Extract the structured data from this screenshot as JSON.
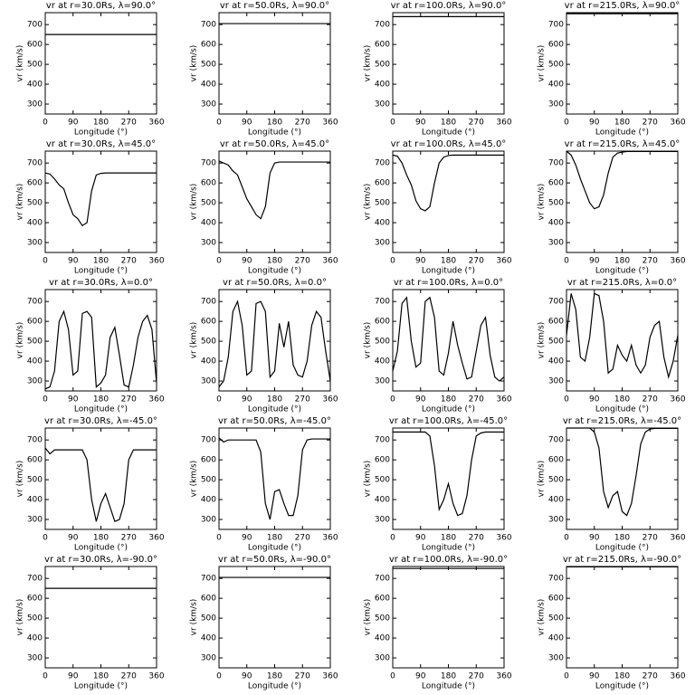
{
  "chart_data": [
    {
      "type": "line",
      "title": "vr at r=30.0Rs, λ=90.0°",
      "x_label": "Longitude (°)",
      "y_label": "vr (km/s)",
      "xlim": [
        0,
        360
      ],
      "ylim": [
        250,
        760
      ],
      "xticks": [
        0,
        90,
        180,
        270,
        360
      ],
      "yticks": [
        300,
        400,
        500,
        600,
        700
      ],
      "color": "#000000",
      "x": [
        0,
        360
      ],
      "values": [
        650,
        650
      ]
    },
    {
      "type": "line",
      "title": "vr at r=50.0Rs, λ=90.0°",
      "x_label": "Longitude (°)",
      "y_label": "vr (km/s)",
      "xlim": [
        0,
        360
      ],
      "ylim": [
        250,
        760
      ],
      "xticks": [
        0,
        90,
        180,
        270,
        360
      ],
      "yticks": [
        300,
        400,
        500,
        600,
        700
      ],
      "color": "#000000",
      "x": [
        0,
        360
      ],
      "values": [
        705,
        705
      ]
    },
    {
      "type": "line",
      "title": "vr at r=100.0Rs, λ=90.0°",
      "x_label": "Longitude (°)",
      "y_label": "vr (km/s)",
      "xlim": [
        0,
        360
      ],
      "ylim": [
        250,
        760
      ],
      "xticks": [
        0,
        90,
        180,
        270,
        360
      ],
      "yticks": [
        300,
        400,
        500,
        600,
        700
      ],
      "color": "#000000",
      "x": [
        0,
        360
      ],
      "values": [
        740,
        740
      ]
    },
    {
      "type": "line",
      "title": "vr at r=215.0Rs, λ=90.0°",
      "x_label": "Longitude (°)",
      "y_label": "vr (km/s)",
      "xlim": [
        0,
        360
      ],
      "ylim": [
        250,
        760
      ],
      "xticks": [
        0,
        90,
        180,
        270,
        360
      ],
      "yticks": [
        300,
        400,
        500,
        600,
        700
      ],
      "color": "#000000",
      "x": [
        0,
        360
      ],
      "values": [
        755,
        755
      ]
    },
    {
      "type": "line",
      "title": "vr at r=30.0Rs, λ=45.0°",
      "x_label": "Longitude (°)",
      "y_label": "vr (km/s)",
      "xlim": [
        0,
        360
      ],
      "ylim": [
        250,
        760
      ],
      "xticks": [
        0,
        90,
        180,
        270,
        360
      ],
      "yticks": [
        300,
        400,
        500,
        600,
        700
      ],
      "color": "#000000",
      "x": [
        0,
        15,
        30,
        45,
        60,
        75,
        90,
        105,
        120,
        135,
        150,
        165,
        180,
        195,
        210,
        225,
        240,
        255,
        270,
        285,
        300,
        315,
        330,
        345,
        360
      ],
      "values": [
        650,
        645,
        620,
        590,
        570,
        500,
        440,
        420,
        385,
        400,
        560,
        640,
        648,
        650,
        650,
        650,
        650,
        650,
        650,
        650,
        650,
        650,
        650,
        650,
        650
      ]
    },
    {
      "type": "line",
      "title": "vr at r=50.0Rs, λ=45.0°",
      "x_label": "Longitude (°)",
      "y_label": "vr (km/s)",
      "xlim": [
        0,
        360
      ],
      "ylim": [
        250,
        760
      ],
      "xticks": [
        0,
        90,
        180,
        270,
        360
      ],
      "yticks": [
        300,
        400,
        500,
        600,
        700
      ],
      "color": "#000000",
      "x": [
        0,
        15,
        30,
        45,
        60,
        75,
        90,
        105,
        120,
        135,
        150,
        165,
        180,
        195,
        210,
        225,
        240,
        255,
        270,
        285,
        300,
        315,
        330,
        345,
        360
      ],
      "values": [
        710,
        700,
        690,
        660,
        640,
        580,
        520,
        480,
        440,
        420,
        480,
        650,
        700,
        705,
        705,
        705,
        705,
        705,
        705,
        705,
        705,
        705,
        705,
        705,
        705
      ]
    },
    {
      "type": "line",
      "title": "vr at r=100.0Rs, λ=45.0°",
      "x_label": "Longitude (°)",
      "y_label": "vr (km/s)",
      "xlim": [
        0,
        360
      ],
      "ylim": [
        250,
        760
      ],
      "xticks": [
        0,
        90,
        180,
        270,
        360
      ],
      "yticks": [
        300,
        400,
        500,
        600,
        700
      ],
      "color": "#000000",
      "x": [
        0,
        15,
        30,
        45,
        60,
        75,
        90,
        105,
        120,
        135,
        150,
        165,
        180,
        195,
        210,
        225,
        240,
        255,
        270,
        285,
        300,
        315,
        330,
        345,
        360
      ],
      "values": [
        740,
        735,
        700,
        640,
        590,
        510,
        470,
        460,
        480,
        600,
        700,
        730,
        738,
        740,
        740,
        740,
        740,
        740,
        740,
        740,
        740,
        740,
        740,
        740,
        740
      ]
    },
    {
      "type": "line",
      "title": "vr at r=215.0Rs, λ=45.0°",
      "x_label": "Longitude (°)",
      "y_label": "vr (km/s)",
      "xlim": [
        0,
        360
      ],
      "ylim": [
        250,
        760
      ],
      "xticks": [
        0,
        90,
        180,
        270,
        360
      ],
      "yticks": [
        300,
        400,
        500,
        600,
        700
      ],
      "color": "#000000",
      "x": [
        0,
        15,
        30,
        45,
        60,
        75,
        90,
        105,
        120,
        135,
        150,
        165,
        180,
        195,
        210,
        225,
        240,
        255,
        270,
        285,
        300,
        315,
        330,
        345,
        360
      ],
      "values": [
        760,
        740,
        690,
        620,
        560,
        500,
        470,
        480,
        540,
        650,
        730,
        750,
        755,
        758,
        758,
        758,
        758,
        758,
        758,
        758,
        758,
        758,
        758,
        758,
        758
      ]
    },
    {
      "type": "line",
      "title": "vr at r=30.0Rs, λ=0.0°",
      "x_label": "Longitude (°)",
      "y_label": "vr (km/s)",
      "xlim": [
        0,
        360
      ],
      "ylim": [
        250,
        760
      ],
      "xticks": [
        0,
        90,
        180,
        270,
        360
      ],
      "yticks": [
        300,
        400,
        500,
        600,
        700
      ],
      "color": "#000000",
      "x": [
        0,
        15,
        30,
        45,
        60,
        75,
        90,
        105,
        120,
        135,
        150,
        165,
        180,
        195,
        210,
        225,
        240,
        255,
        270,
        285,
        300,
        315,
        330,
        345,
        360
      ],
      "values": [
        260,
        270,
        350,
        600,
        650,
        560,
        330,
        350,
        640,
        650,
        620,
        270,
        290,
        330,
        520,
        570,
        430,
        280,
        270,
        380,
        520,
        600,
        630,
        560,
        290
      ]
    },
    {
      "type": "line",
      "title": "vr at r=50.0Rs, λ=0.0°",
      "x_label": "Longitude (°)",
      "y_label": "vr (km/s)",
      "xlim": [
        0,
        360
      ],
      "ylim": [
        250,
        760
      ],
      "xticks": [
        0,
        90,
        180,
        270,
        360
      ],
      "yticks": [
        300,
        400,
        500,
        600,
        700
      ],
      "color": "#000000",
      "x": [
        0,
        15,
        30,
        45,
        60,
        75,
        90,
        105,
        120,
        135,
        150,
        165,
        180,
        195,
        210,
        225,
        240,
        255,
        270,
        285,
        300,
        315,
        330,
        345,
        360
      ],
      "values": [
        270,
        300,
        420,
        650,
        700,
        580,
        330,
        350,
        690,
        700,
        650,
        320,
        350,
        590,
        470,
        600,
        380,
        330,
        320,
        400,
        580,
        650,
        620,
        450,
        300
      ]
    },
    {
      "type": "line",
      "title": "vr at r=100.0Rs, λ=0.0°",
      "x_label": "Longitude (°)",
      "y_label": "vr (km/s)",
      "xlim": [
        0,
        360
      ],
      "ylim": [
        250,
        760
      ],
      "xticks": [
        0,
        90,
        180,
        270,
        360
      ],
      "yticks": [
        300,
        400,
        500,
        600,
        700
      ],
      "color": "#000000",
      "x": [
        0,
        15,
        30,
        45,
        60,
        75,
        90,
        105,
        120,
        135,
        150,
        165,
        180,
        195,
        210,
        225,
        240,
        255,
        270,
        285,
        300,
        315,
        330,
        345,
        360
      ],
      "values": [
        350,
        450,
        690,
        720,
        500,
        370,
        390,
        700,
        720,
        620,
        350,
        330,
        440,
        600,
        480,
        390,
        310,
        320,
        450,
        580,
        620,
        430,
        320,
        300,
        320
      ]
    },
    {
      "type": "line",
      "title": "vr at r=215.0Rs, λ=0.0°",
      "x_label": "Longitude (°)",
      "y_label": "vr (km/s)",
      "xlim": [
        0,
        360
      ],
      "ylim": [
        250,
        760
      ],
      "xticks": [
        0,
        90,
        180,
        270,
        360
      ],
      "yticks": [
        300,
        400,
        500,
        600,
        700
      ],
      "color": "#000000",
      "x": [
        0,
        15,
        30,
        45,
        60,
        75,
        90,
        105,
        120,
        135,
        150,
        165,
        180,
        195,
        210,
        225,
        240,
        255,
        270,
        285,
        300,
        315,
        330,
        345,
        360
      ],
      "values": [
        530,
        740,
        660,
        420,
        400,
        520,
        740,
        730,
        600,
        340,
        360,
        480,
        430,
        400,
        480,
        380,
        340,
        380,
        520,
        580,
        600,
        420,
        320,
        400,
        530
      ]
    },
    {
      "type": "line",
      "title": "vr at r=30.0Rs, λ=-45.0°",
      "x_label": "Longitude (°)",
      "y_label": "vr (km/s)",
      "xlim": [
        0,
        360
      ],
      "ylim": [
        250,
        760
      ],
      "xticks": [
        0,
        90,
        180,
        270,
        360
      ],
      "yticks": [
        300,
        400,
        500,
        600,
        700
      ],
      "color": "#000000",
      "x": [
        0,
        15,
        30,
        45,
        60,
        75,
        90,
        105,
        120,
        135,
        150,
        165,
        180,
        195,
        210,
        225,
        240,
        255,
        270,
        285,
        300,
        315,
        330,
        345,
        360
      ],
      "values": [
        660,
        630,
        650,
        650,
        650,
        650,
        650,
        650,
        650,
        600,
        400,
        290,
        380,
        430,
        360,
        290,
        300,
        380,
        600,
        650,
        650,
        650,
        650,
        650,
        650
      ]
    },
    {
      "type": "line",
      "title": "vr at r=50.0Rs, λ=-45.0°",
      "x_label": "Longitude (°)",
      "y_label": "vr (km/s)",
      "xlim": [
        0,
        360
      ],
      "ylim": [
        250,
        760
      ],
      "xticks": [
        0,
        90,
        180,
        270,
        360
      ],
      "yticks": [
        300,
        400,
        500,
        600,
        700
      ],
      "color": "#000000",
      "x": [
        0,
        15,
        30,
        45,
        60,
        75,
        90,
        105,
        120,
        135,
        150,
        165,
        180,
        195,
        210,
        225,
        240,
        255,
        270,
        285,
        300,
        315,
        330,
        345,
        360
      ],
      "values": [
        710,
        690,
        700,
        700,
        700,
        700,
        700,
        700,
        700,
        640,
        380,
        300,
        440,
        450,
        380,
        320,
        320,
        420,
        650,
        700,
        705,
        705,
        705,
        705,
        705
      ]
    },
    {
      "type": "line",
      "title": "vr at r=100.0Rs, λ=-45.0°",
      "x_label": "Longitude (°)",
      "y_label": "vr (km/s)",
      "xlim": [
        0,
        360
      ],
      "ylim": [
        250,
        760
      ],
      "xticks": [
        0,
        90,
        180,
        270,
        360
      ],
      "yticks": [
        300,
        400,
        500,
        600,
        700
      ],
      "color": "#000000",
      "x": [
        0,
        15,
        30,
        45,
        60,
        75,
        90,
        105,
        120,
        135,
        150,
        165,
        180,
        195,
        210,
        225,
        240,
        255,
        270,
        285,
        300,
        315,
        330,
        345,
        360
      ],
      "values": [
        740,
        740,
        740,
        740,
        740,
        740,
        740,
        740,
        720,
        570,
        350,
        400,
        480,
        380,
        320,
        330,
        420,
        600,
        720,
        735,
        740,
        740,
        740,
        740,
        740
      ]
    },
    {
      "type": "line",
      "title": "vr at r=215.0Rs, λ=-45.0°",
      "x_label": "Longitude (°)",
      "y_label": "vr (km/s)",
      "xlim": [
        0,
        360
      ],
      "ylim": [
        250,
        760
      ],
      "xticks": [
        0,
        90,
        180,
        270,
        360
      ],
      "yticks": [
        300,
        400,
        500,
        600,
        700
      ],
      "color": "#000000",
      "x": [
        0,
        15,
        30,
        45,
        60,
        75,
        90,
        105,
        120,
        135,
        150,
        165,
        180,
        195,
        210,
        225,
        240,
        255,
        270,
        285,
        300,
        315,
        330,
        345,
        360
      ],
      "values": [
        760,
        760,
        760,
        760,
        760,
        760,
        740,
        660,
        440,
        360,
        420,
        440,
        340,
        320,
        380,
        520,
        680,
        740,
        755,
        758,
        758,
        758,
        758,
        758,
        758
      ]
    },
    {
      "type": "line",
      "title": "vr at r=30.0Rs, λ=-90.0°",
      "x_label": "Longitude (°)",
      "y_label": "vr (km/s)",
      "xlim": [
        0,
        360
      ],
      "ylim": [
        250,
        760
      ],
      "xticks": [
        0,
        90,
        180,
        270,
        360
      ],
      "yticks": [
        300,
        400,
        500,
        600,
        700
      ],
      "color": "#000000",
      "x": [
        0,
        360
      ],
      "values": [
        650,
        650
      ]
    },
    {
      "type": "line",
      "title": "vr at r=50.0Rs, λ=-90.0°",
      "x_label": "Longitude (°)",
      "y_label": "vr (km/s)",
      "xlim": [
        0,
        360
      ],
      "ylim": [
        250,
        760
      ],
      "xticks": [
        0,
        90,
        180,
        270,
        360
      ],
      "yticks": [
        300,
        400,
        500,
        600,
        700
      ],
      "color": "#000000",
      "x": [
        0,
        360
      ],
      "values": [
        705,
        705
      ]
    },
    {
      "type": "line",
      "title": "vr at r=100.0Rs, λ=-90.0°",
      "x_label": "Longitude (°)",
      "y_label": "vr (km/s)",
      "xlim": [
        0,
        360
      ],
      "ylim": [
        250,
        760
      ],
      "xticks": [
        0,
        90,
        180,
        270,
        360
      ],
      "yticks": [
        300,
        400,
        500,
        600,
        700
      ],
      "color": "#000000",
      "x": [
        0,
        360
      ],
      "values": [
        750,
        750
      ]
    },
    {
      "type": "line",
      "title": "vr at r=215.0Rs, λ=-90.0°",
      "x_label": "Longitude (°)",
      "y_label": "vr (km/s)",
      "xlim": [
        0,
        360
      ],
      "ylim": [
        250,
        760
      ],
      "xticks": [
        0,
        90,
        180,
        270,
        360
      ],
      "yticks": [
        300,
        400,
        500,
        600,
        700
      ],
      "color": "#000000",
      "x": [
        0,
        360
      ],
      "values": [
        758,
        758
      ]
    }
  ]
}
